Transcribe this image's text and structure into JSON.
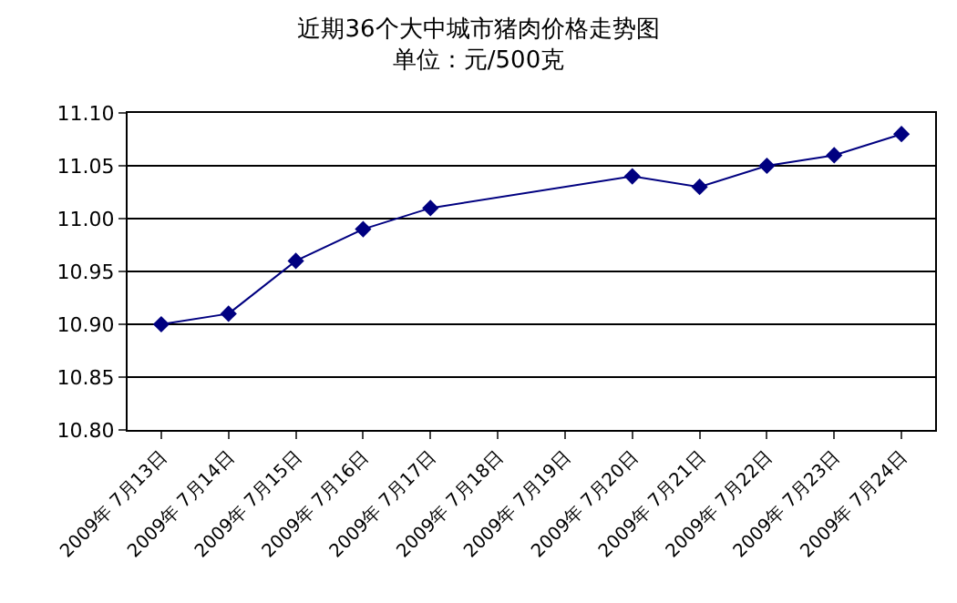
{
  "chart_data": {
    "type": "line",
    "title": "近期36个大中城市猪肉价格走势图",
    "subtitle": "单位：元/500克",
    "categories": [
      "2009年 7月13日",
      "2009年 7月14日",
      "2009年 7月15日",
      "2009年 7月16日",
      "2009年 7月17日",
      "2009年 7月18日",
      "2009年 7月19日",
      "2009年 7月20日",
      "2009年 7月21日",
      "2009年 7月22日",
      "2009年 7月23日",
      "2009年 7月24日"
    ],
    "series": [
      {
        "color": "#000080",
        "values": [
          10.9,
          10.91,
          10.96,
          10.99,
          11.01,
          null,
          null,
          11.04,
          11.03,
          11.05,
          11.06,
          11.08
        ]
      }
    ],
    "ylim": [
      10.8,
      11.1
    ],
    "yticks": [
      {
        "value": 10.8,
        "label": "10.80"
      },
      10.85,
      {
        "value": 10.9,
        "label": "10.90"
      },
      10.95,
      {
        "value": 11.0,
        "label": "11.00"
      },
      11.05,
      {
        "value": 11.1,
        "label": "11.10"
      }
    ],
    "grid": "y",
    "marker": "diamond",
    "line_style": "solid",
    "legend": false
  }
}
